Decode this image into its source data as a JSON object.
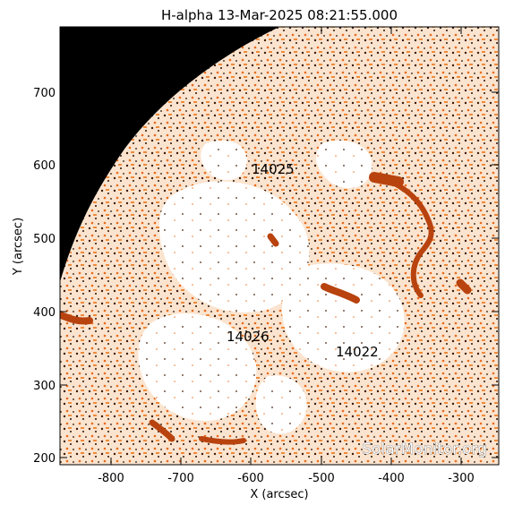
{
  "title": "H-alpha 13-Mar-2025 08:21:55.000",
  "xlabel": "X (arcsec)",
  "ylabel": "Y (arcsec)",
  "x_ticks": [
    "-800",
    "-700",
    "-600",
    "-500",
    "-400",
    "-300"
  ],
  "y_ticks": [
    "700",
    "600",
    "500",
    "400",
    "300",
    "200"
  ],
  "regions": [
    {
      "label": "14025"
    },
    {
      "label": "14026"
    },
    {
      "label": "14022"
    }
  ],
  "watermark": "SolarMonitor.org",
  "colors": {
    "background_space": "#000000",
    "chromosphere_dark": "#e2681f",
    "chromosphere_mid": "#f5a25e",
    "plage_light": "#ffffff",
    "filament": "#b8430f"
  }
}
